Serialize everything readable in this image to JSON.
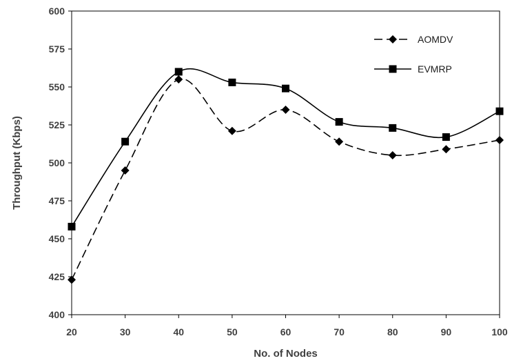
{
  "chart_data": {
    "type": "line",
    "title": "",
    "xlabel": "No. of Nodes",
    "ylabel": "Throughput (Kbps)",
    "x": [
      20,
      30,
      40,
      50,
      60,
      70,
      80,
      90,
      100
    ],
    "x_tick_labels": [
      "20",
      "30",
      "40",
      "50",
      "60",
      "70",
      "80",
      "90",
      "100"
    ],
    "ylim": [
      400,
      600
    ],
    "y_ticks": [
      400,
      425,
      450,
      475,
      500,
      525,
      550,
      575,
      600
    ],
    "y_tick_labels": [
      "400",
      "425",
      "450",
      "475",
      "500",
      "525",
      "550",
      "575",
      "600"
    ],
    "grid": false,
    "legend_position": "top-right",
    "series": [
      {
        "name": "AOMDV",
        "values": [
          423,
          495,
          555,
          521,
          535,
          514,
          505,
          509,
          515
        ],
        "line_style": "dashed",
        "marker": "diamond",
        "color": "#000000"
      },
      {
        "name": "EVMRP",
        "values": [
          458,
          514,
          560,
          553,
          549,
          527,
          523,
          517,
          534
        ],
        "line_style": "solid",
        "marker": "square",
        "color": "#000000"
      }
    ]
  }
}
